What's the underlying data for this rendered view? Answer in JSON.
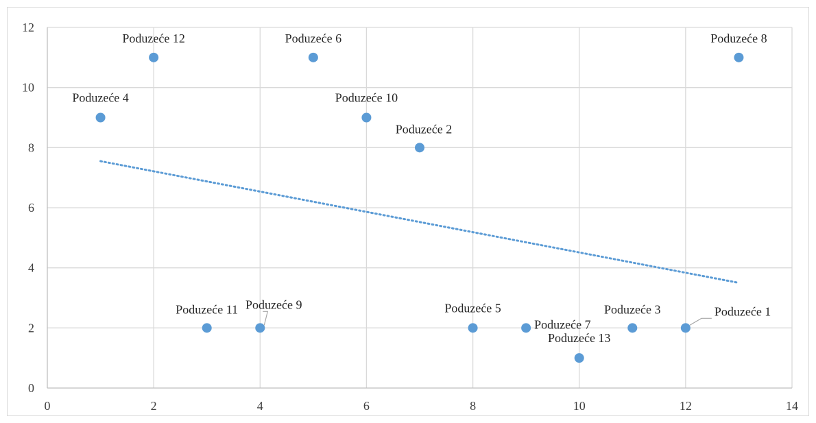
{
  "chart_data": {
    "type": "scatter",
    "title": "",
    "xlabel": "",
    "ylabel": "",
    "xlim": [
      0,
      14
    ],
    "ylim": [
      0,
      12
    ],
    "x_ticks": [
      0,
      2,
      4,
      6,
      8,
      10,
      12,
      14
    ],
    "y_ticks": [
      0,
      2,
      4,
      6,
      8,
      10,
      12
    ],
    "grid": true,
    "legend": "none",
    "colors": {
      "point": "#5b9bd5",
      "trendline": "#5b9bd5",
      "grid": "#d9d9d9",
      "frame": "#d9d9d9"
    },
    "points": [
      {
        "label": "Poduzeće 1",
        "x": 12,
        "y": 2
      },
      {
        "label": "Poduzeće 2",
        "x": 7,
        "y": 8
      },
      {
        "label": "Poduzeće 3",
        "x": 11,
        "y": 2
      },
      {
        "label": "Poduzeće 4",
        "x": 1,
        "y": 9
      },
      {
        "label": "Poduzeće 5",
        "x": 8,
        "y": 2
      },
      {
        "label": "Poduzeće 6",
        "x": 5,
        "y": 11
      },
      {
        "label": "Poduzeće 7",
        "x": 9,
        "y": 2
      },
      {
        "label": "Poduzeće 8",
        "x": 13,
        "y": 11
      },
      {
        "label": "Poduzeće 9",
        "x": 4,
        "y": 2
      },
      {
        "label": "Poduzeće 10",
        "x": 6,
        "y": 9
      },
      {
        "label": "Poduzeće 11",
        "x": 3,
        "y": 2
      },
      {
        "label": "Poduzeće 12",
        "x": 2,
        "y": 11
      },
      {
        "label": "Poduzeće 13",
        "x": 10,
        "y": 1
      }
    ],
    "trendline": {
      "type": "linear",
      "style": "dotted",
      "x_start": 1,
      "y_start": 7.55,
      "x_end": 13,
      "y_end": 3.5
    }
  }
}
